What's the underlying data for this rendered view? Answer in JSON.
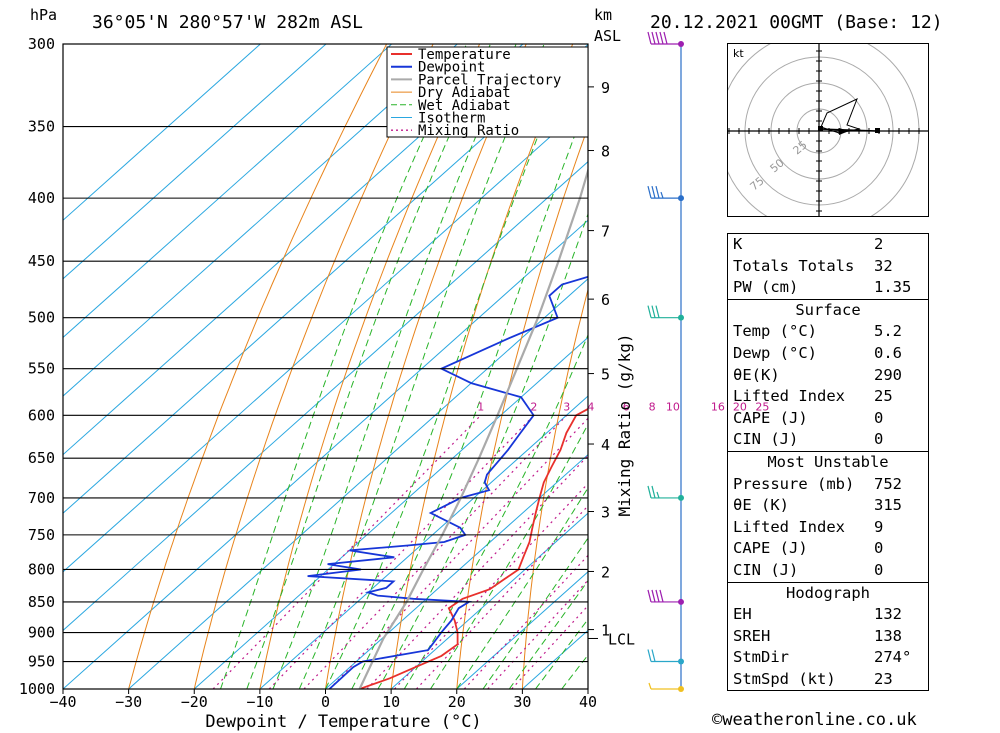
{
  "header": {
    "unit_left": "hPa",
    "location": "36°05'N  280°57'W  282m  ASL",
    "unit_km": "km",
    "unit_asl": "ASL",
    "datetime": "20.12.2021  00GMT  (Base: 12)"
  },
  "footer": {
    "credit": "©weatheronline.co.uk"
  },
  "chart_data": {
    "type": "line",
    "subtype": "skew-T log-P sounding",
    "xlabel": "Dewpoint / Temperature (°C)",
    "ylabel_right": "Mixing Ratio (g/kg)",
    "xlim": [
      -40,
      40
    ],
    "ylim_hPa": [
      1000,
      300
    ],
    "pressure_ticks": [
      300,
      350,
      400,
      450,
      500,
      550,
      600,
      650,
      700,
      750,
      800,
      850,
      900,
      950,
      1000
    ],
    "temp_ticks": [
      -40,
      -30,
      -20,
      -10,
      0,
      10,
      20,
      30,
      40
    ],
    "temp_tick_labels": [
      "−40",
      "−30",
      "−20",
      "−10",
      "0",
      "10",
      "20",
      "30",
      "40"
    ],
    "km_ticks": [
      {
        "label": "1",
        "p": 895
      },
      {
        "label": "2",
        "p": 803
      },
      {
        "label": "3",
        "p": 718
      },
      {
        "label": "4",
        "p": 633
      },
      {
        "label": "5",
        "p": 555
      },
      {
        "label": "6",
        "p": 483
      },
      {
        "label": "7",
        "p": 425
      },
      {
        "label": "8",
        "p": 366
      },
      {
        "label": "9",
        "p": 325
      }
    ],
    "lcl_label": "LCL",
    "lcl_pressure": 910,
    "mixing_ratio_labels": [
      "1",
      "2",
      "3",
      "4",
      "6",
      "8",
      "10",
      "16",
      "20",
      "25"
    ],
    "mixing_ratio_values": [
      1,
      2,
      3,
      4,
      6,
      8,
      10,
      16,
      20,
      25
    ],
    "legend": [
      "Temperature",
      "Dewpoint",
      "Parcel Trajectory",
      "Dry Adiabat",
      "Wet Adiabat",
      "Isotherm",
      "Mixing Ratio"
    ],
    "series": [
      {
        "name": "Temperature",
        "color": "#e8302c",
        "points": [
          [
            1000,
            5.2
          ],
          [
            980,
            8
          ],
          [
            960,
            10
          ],
          [
            940,
            12
          ],
          [
            920,
            12.5
          ],
          [
            900,
            10.5
          ],
          [
            880,
            8
          ],
          [
            860,
            5
          ],
          [
            845,
            5.5
          ],
          [
            830,
            8
          ],
          [
            815,
            8.5
          ],
          [
            800,
            9
          ],
          [
            780,
            7.5
          ],
          [
            760,
            6
          ],
          [
            740,
            4
          ],
          [
            720,
            2
          ],
          [
            700,
            0
          ],
          [
            680,
            -2
          ],
          [
            660,
            -3.5
          ],
          [
            640,
            -5
          ],
          [
            620,
            -7
          ],
          [
            600,
            -8.5
          ],
          [
            590,
            -7.5
          ],
          [
            580,
            -8.5
          ],
          [
            570,
            -8
          ],
          [
            550,
            -9
          ],
          [
            520,
            -12
          ],
          [
            500,
            -14
          ],
          [
            480,
            -16
          ],
          [
            460,
            -18.5
          ],
          [
            440,
            -20.5
          ],
          [
            420,
            -23
          ],
          [
            400,
            -25
          ],
          [
            380,
            -28
          ],
          [
            360,
            -31
          ],
          [
            350,
            -32.5
          ],
          [
            330,
            -36
          ],
          [
            315,
            -40
          ],
          [
            300,
            -42.5
          ]
        ]
      },
      {
        "name": "Dewpoint",
        "color": "#1736d8",
        "points": [
          [
            1000,
            0.6
          ],
          [
            960,
            0.5
          ],
          [
            950,
            1
          ],
          [
            930,
            9
          ],
          [
            900,
            8
          ],
          [
            880,
            7.5
          ],
          [
            860,
            6.5
          ],
          [
            850,
            7
          ],
          [
            845,
            -2
          ],
          [
            840,
            -8
          ],
          [
            835,
            -10
          ],
          [
            828,
            -8
          ],
          [
            818,
            -8
          ],
          [
            810,
            -22
          ],
          [
            800,
            -15
          ],
          [
            792,
            -21
          ],
          [
            782,
            -12
          ],
          [
            772,
            -20
          ],
          [
            765,
            -12
          ],
          [
            760,
            -7
          ],
          [
            750,
            -5
          ],
          [
            740,
            -7
          ],
          [
            720,
            -14
          ],
          [
            700,
            -12
          ],
          [
            690,
            -9
          ],
          [
            680,
            -11
          ],
          [
            670,
            -12
          ],
          [
            640,
            -13
          ],
          [
            620,
            -14
          ],
          [
            600,
            -15
          ],
          [
            580,
            -20
          ],
          [
            565,
            -30
          ],
          [
            550,
            -37
          ],
          [
            520,
            -32
          ],
          [
            500,
            -28
          ],
          [
            480,
            -33
          ],
          [
            470,
            -33
          ],
          [
            460,
            -29
          ],
          [
            450,
            -30
          ],
          [
            440,
            -31
          ],
          [
            420,
            -32
          ],
          [
            410,
            -37
          ],
          [
            400,
            -34
          ],
          [
            390,
            -33
          ],
          [
            380,
            -33
          ],
          [
            370,
            -31
          ],
          [
            355,
            -33
          ],
          [
            350,
            -34
          ],
          [
            330,
            -35
          ],
          [
            315,
            -38
          ],
          [
            300,
            -41
          ]
        ]
      },
      {
        "name": "Parcel Trajectory",
        "color": "#aaaaaa",
        "points": [
          [
            1000,
            5.2
          ],
          [
            910,
            0.2
          ],
          [
            850,
            -2.5
          ],
          [
            800,
            -5.5
          ],
          [
            750,
            -8.5
          ],
          [
            700,
            -12
          ],
          [
            650,
            -16
          ],
          [
            600,
            -20.5
          ],
          [
            550,
            -25.5
          ],
          [
            500,
            -31
          ],
          [
            450,
            -37.5
          ],
          [
            400,
            -45
          ],
          [
            350,
            -54
          ],
          [
            300,
            -64
          ]
        ]
      }
    ],
    "wind_barbs": [
      {
        "p": 1000,
        "speed_kt": 5,
        "color": "#f0c020"
      },
      {
        "p": 950,
        "speed_kt": 20,
        "color": "#2aa7c9"
      },
      {
        "p": 850,
        "speed_kt": 40,
        "color": "#9d1fb0"
      },
      {
        "p": 700,
        "speed_kt": 25,
        "color": "#20b09a"
      },
      {
        "p": 500,
        "speed_kt": 30,
        "color": "#20b09a"
      },
      {
        "p": 400,
        "speed_kt": 35,
        "color": "#2a6fc9"
      },
      {
        "p": 300,
        "speed_kt": 50,
        "color": "#9d1fb0"
      }
    ],
    "colors": {
      "isotherm": "#2aa7e0",
      "dry_adiabat": "#e8841c",
      "wet_adiabat": "#28b428",
      "mixing_ratio": "#c01a8c"
    }
  },
  "hodograph": {
    "unit": "kt",
    "ring_labels": [
      "25",
      "50",
      "75"
    ]
  },
  "indices": {
    "k_label": "K",
    "k_value": "2",
    "tt_label": "Totals Totals",
    "tt_value": "32",
    "pw_label": "PW (cm)",
    "pw_value": "1.35",
    "surface_head": "Surface",
    "temp_label": "Temp (°C)",
    "temp_value": "5.2",
    "dewp_label": "Dewp (°C)",
    "dewp_value": "0.6",
    "theta_label": "θE(K)",
    "theta_value": "290",
    "li_label": "Lifted Index",
    "li_value": "25",
    "cape_label": "CAPE (J)",
    "cape_value": "0",
    "cin_label": "CIN (J)",
    "cin_value": "0",
    "mu_head": "Most Unstable",
    "mu_pres_label": "Pressure (mb)",
    "mu_pres_value": "752",
    "mu_theta_label": "θE (K)",
    "mu_theta_value": "315",
    "mu_li_label": "Lifted Index",
    "mu_li_value": "9",
    "mu_cape_label": "CAPE (J)",
    "mu_cape_value": "0",
    "mu_cin_label": "CIN (J)",
    "mu_cin_value": "0",
    "hodo_head": "Hodograph",
    "eh_label": "EH",
    "eh_value": "132",
    "sreh_label": "SREH",
    "sreh_value": "138",
    "stmdir_label": "StmDir",
    "stmdir_value": "274°",
    "stmspd_label": "StmSpd (kt)",
    "stmspd_value": "23"
  }
}
